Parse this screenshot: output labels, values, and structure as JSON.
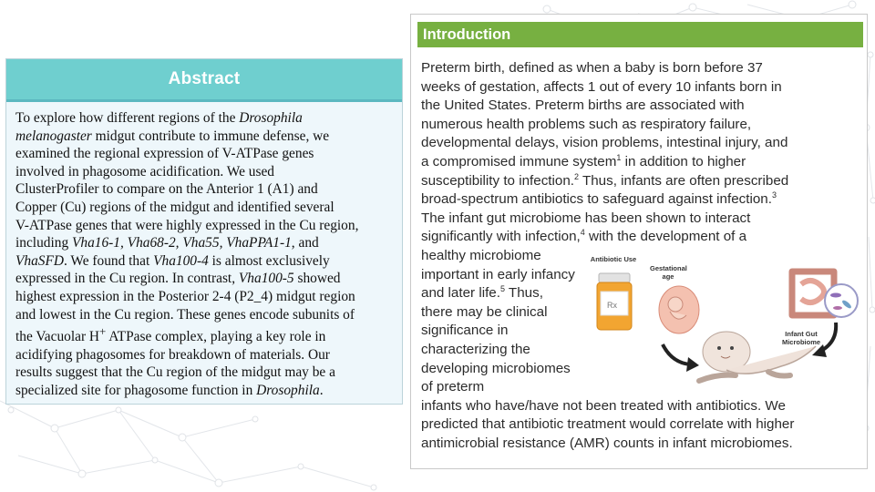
{
  "abstract": {
    "title": "Abstract",
    "lines": [
      [
        "To explore how different regions of the ",
        {
          "i": "Drosophila"
        }
      ],
      [
        {
          "i": "melanogaster"
        },
        " midgut contribute to immune defense, we"
      ],
      [
        "examined the regional expression of V-ATPase genes"
      ],
      [
        "involved in phagosome acidification. We used"
      ],
      [
        "ClusterProfiler to compare on the Anterior 1 (A1) and"
      ],
      [
        "Copper (Cu) regions of the midgut and identified several"
      ],
      [
        "V-ATPase genes that were highly expressed in the Cu region,"
      ],
      [
        "including ",
        {
          "i": "Vha16-1, Vha68-2, Vha55, VhaPPA1-1"
        },
        ", and"
      ],
      [
        {
          "i": "VhaSFD"
        },
        ". We found that ",
        {
          "i": "Vha100-4"
        },
        " is almost exclusively"
      ],
      [
        "expressed in the Cu region. In contrast, ",
        {
          "i": "Vha100-5"
        },
        " showed"
      ],
      [
        "highest expression in the Posterior 2-4 (P2_4) midgut region"
      ],
      [
        "and lowest in the Cu region. These genes encode subunits of"
      ],
      [
        "the Vacuolar H",
        {
          "sup": "+"
        },
        " ATPase complex, playing a key role in"
      ],
      [
        "acidifying phagosomes for breakdown of materials.  Our"
      ],
      [
        "results suggest that the Cu region of the midgut may be a"
      ],
      [
        "specialized site for phagosome function in ",
        {
          "i": "Drosophila"
        },
        "."
      ]
    ]
  },
  "introduction": {
    "title": "Introduction",
    "lines": [
      [
        "Preterm birth, defined as when a baby is born before 37"
      ],
      [
        "weeks of gestation, affects 1 out of every 10 infants born in"
      ],
      [
        "the United States. Preterm births are associated with"
      ],
      [
        "numerous health problems such as respiratory failure,"
      ],
      [
        "developmental delays, vision problems, intestinal injury, and"
      ],
      [
        "a compromised immune system",
        {
          "sup": "1"
        },
        " in addition to higher"
      ],
      [
        "susceptibility to infection.",
        {
          "sup": "2"
        },
        " Thus, infants are often prescribed"
      ],
      [
        "broad-spectrum antibiotics to safeguard against infection.",
        {
          "sup": "3"
        }
      ],
      [
        "The infant gut microbiome has been shown to interact"
      ],
      [
        "significantly with infection,",
        {
          "sup": "4"
        },
        " with the development of a"
      ],
      [
        "healthy microbiome"
      ],
      [
        "important in early infancy"
      ],
      [
        "and later life.",
        {
          "sup": "5"
        },
        " Thus,"
      ],
      [
        "there may be clinical"
      ],
      [
        "significance in"
      ],
      [
        "characterizing the"
      ],
      [
        "developing microbiomes"
      ],
      [
        "of preterm"
      ],
      [
        "infants who have/have not been treated with antibiotics. We"
      ],
      [
        "predicted that antibiotic treatment would correlate with higher"
      ],
      [
        "antimicrobial resistance (AMR) counts in infant microbiomes."
      ]
    ],
    "figure": {
      "label_antibiotic": "Antibiotic Use",
      "label_gestational": "Gestational age",
      "label_microbiome": "Infant Gut Microbiome",
      "bottle_mark": "Rx"
    }
  }
}
